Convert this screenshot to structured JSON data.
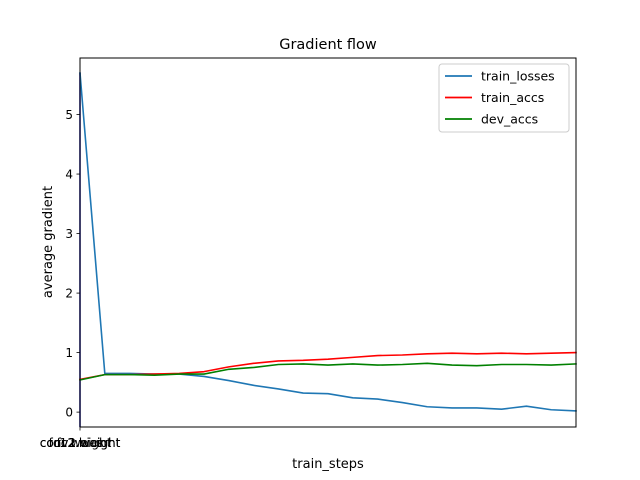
{
  "chart_data": {
    "type": "line",
    "title": "Gradient flow",
    "xlabel": "train_steps",
    "ylabel": "average gradient",
    "xlim": [
      0,
      20
    ],
    "ylim": [
      -0.25,
      5.95
    ],
    "yticks": [
      0,
      1,
      2,
      3,
      4,
      5
    ],
    "xtick_labels": [
      "conv1.weight",
      "fc2.bias",
      "fc1.weight",
      "conv2.weight"
    ],
    "grid": false,
    "legend_position": "top-right",
    "x": [
      0,
      1,
      2,
      3,
      4,
      5,
      6,
      7,
      8,
      9,
      10,
      11,
      12,
      13,
      14,
      15,
      16,
      17,
      18,
      19,
      20
    ],
    "series": [
      {
        "name": "train_losses",
        "color": "#1f77b4",
        "values": [
          5.7,
          0.65,
          0.65,
          0.64,
          0.64,
          0.6,
          0.53,
          0.45,
          0.39,
          0.32,
          0.31,
          0.24,
          0.22,
          0.16,
          0.09,
          0.07,
          0.07,
          0.05,
          0.1,
          0.04,
          0.02
        ]
      },
      {
        "name": "train_accs",
        "color": "#ff0000",
        "values": [
          0.55,
          0.63,
          0.63,
          0.64,
          0.65,
          0.68,
          0.76,
          0.82,
          0.86,
          0.87,
          0.89,
          0.92,
          0.95,
          0.96,
          0.98,
          0.99,
          0.98,
          0.99,
          0.98,
          0.99,
          1.0
        ]
      },
      {
        "name": "dev_accs",
        "color": "#008000",
        "values": [
          0.54,
          0.63,
          0.63,
          0.62,
          0.64,
          0.64,
          0.72,
          0.75,
          0.8,
          0.81,
          0.79,
          0.81,
          0.79,
          0.8,
          0.82,
          0.79,
          0.78,
          0.8,
          0.8,
          0.79,
          0.81
        ]
      }
    ],
    "overlay": {
      "color": "#0000aa",
      "x": 0,
      "y_range": [
        -0.25,
        5.7
      ]
    }
  }
}
